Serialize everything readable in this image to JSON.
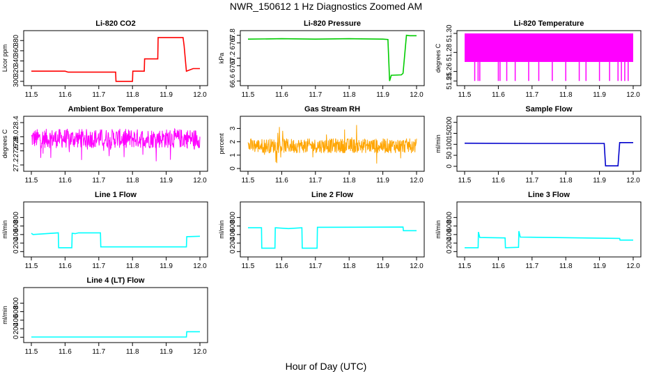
{
  "page": {
    "title": "NWR_150612  1 Hz Diagnostics Zoomed AM",
    "xlabel": "Hour of Day (UTC)"
  },
  "colors": {
    "red": "#ff0000",
    "green": "#00cc00",
    "magenta": "#ff00ff",
    "orange": "#ffa500",
    "blue": "#0000cc",
    "cyan": "#00ffff",
    "frame": "#000000"
  },
  "chart_data": [
    {
      "type": "line",
      "title": "Li-820 CO2",
      "ylabel": "Licor ppm",
      "color": "#ff0000",
      "xlim": [
        11.5,
        12.0
      ],
      "ylim": [
        297,
        394
      ],
      "xticks": [
        "11.5",
        "11.6",
        "11.7",
        "11.8",
        "11.9",
        "12.0"
      ],
      "yticks": [
        "300",
        "320",
        "340",
        "360",
        "380"
      ],
      "x": [
        11.5,
        11.6,
        11.609,
        11.75,
        11.751,
        11.8,
        11.801,
        11.835,
        11.836,
        11.875,
        11.876,
        11.95,
        11.953,
        11.958,
        11.96,
        11.98,
        12.0
      ],
      "y": [
        320,
        320,
        318,
        318,
        300,
        300,
        320,
        320,
        344,
        344,
        386,
        386,
        370,
        333,
        320,
        325,
        325
      ]
    },
    {
      "type": "line",
      "title": "Li-820 Pressure",
      "ylabel": "kPa",
      "color": "#00cc00",
      "xlim": [
        11.5,
        12.0
      ],
      "ylim": [
        66.55,
        67.85
      ],
      "xticks": [
        "11.5",
        "11.6",
        "11.7",
        "11.8",
        "11.9",
        "12.0"
      ],
      "yticks": [
        "66.6",
        "67.0",
        "67.2",
        "67.6",
        "67.8"
      ],
      "x": [
        11.5,
        11.6,
        11.7,
        11.8,
        11.9,
        11.915,
        11.92,
        11.925,
        11.955,
        11.96,
        11.97,
        11.98,
        12.0
      ],
      "y": [
        67.7,
        67.71,
        67.7,
        67.71,
        67.7,
        67.69,
        66.6,
        66.75,
        66.76,
        66.8,
        67.8,
        67.79,
        67.79
      ]
    },
    {
      "type": "line",
      "title": "Li-820 Temperature",
      "ylabel": "degrees C",
      "color": "#ff00ff",
      "xlim": [
        11.5,
        12.0
      ],
      "ylim": [
        51.248,
        51.3
      ],
      "xticks": [
        "11.5",
        "11.6",
        "11.7",
        "11.8",
        "11.9",
        "12.0"
      ],
      "yticks": [
        "51.25",
        "51.26",
        "51.28",
        "51.30"
      ],
      "x": [
        11.5,
        12.0
      ],
      "y": [
        51.27,
        51.3
      ]
    },
    {
      "type": "line",
      "title": "Ambient Box Temperature",
      "ylabel": "degrees C",
      "color": "#ff00ff",
      "xlim": [
        11.5,
        12.0
      ],
      "ylim": [
        27.1,
        28.5
      ],
      "xticks": [
        "11.5",
        "11.6",
        "11.7",
        "11.8",
        "11.9",
        "12.0"
      ],
      "yticks": [
        "27.2",
        "27.6",
        "27.8",
        "28.0",
        "28.4"
      ],
      "x": [
        11.5,
        12.0
      ],
      "y": [
        27.95,
        28.05
      ]
    },
    {
      "type": "line",
      "title": "Gas Stream RH",
      "ylabel": "percent",
      "color": "#ffa500",
      "xlim": [
        11.5,
        12.0
      ],
      "ylim": [
        0,
        3.7
      ],
      "xticks": [
        "11.5",
        "11.6",
        "11.7",
        "11.8",
        "11.9",
        "12.0"
      ],
      "yticks": [
        "0",
        "1",
        "2",
        "3"
      ],
      "x": [
        11.5,
        12.0
      ],
      "y": [
        1.7,
        1.7
      ]
    },
    {
      "type": "line",
      "title": "Sample Flow",
      "ylabel": "ml/min",
      "color": "#0000cc",
      "xlim": [
        11.5,
        12.0
      ],
      "ylim": [
        -10,
        215
      ],
      "xticks": [
        "11.5",
        "11.6",
        "11.7",
        "11.8",
        "11.9",
        "12.0"
      ],
      "yticks": [
        "0",
        "50",
        "100",
        "150",
        "200"
      ],
      "x": [
        11.5,
        11.7,
        11.9,
        11.914,
        11.918,
        11.955,
        11.96,
        11.962,
        12.0
      ],
      "y": [
        105,
        104,
        104,
        104,
        2,
        2,
        108,
        108,
        108
      ]
    },
    {
      "type": "line",
      "title": "Line 1 Flow",
      "ylabel": "ml/min",
      "color": "#00ffff",
      "xlim": [
        11.5,
        12.0
      ],
      "ylim": [
        -60,
        1100
      ],
      "xticks": [
        "11.5",
        "11.6",
        "11.7",
        "11.8",
        "11.9",
        "12.0"
      ],
      "yticks": [
        "0",
        "200",
        "400",
        "600",
        "800"
      ],
      "x": [
        11.5,
        11.505,
        11.58,
        11.581,
        11.62,
        11.621,
        11.63,
        11.64,
        11.705,
        11.706,
        11.96,
        11.961,
        12.0
      ],
      "y": [
        430,
        400,
        440,
        90,
        90,
        430,
        420,
        440,
        440,
        110,
        110,
        350,
        360
      ]
    },
    {
      "type": "line",
      "title": "Line 2 Flow",
      "ylabel": "ml/min",
      "color": "#00ffff",
      "xlim": [
        11.5,
        12.0
      ],
      "ylim": [
        -60,
        1100
      ],
      "xticks": [
        "11.5",
        "11.6",
        "11.7",
        "11.8",
        "11.9",
        "12.0"
      ],
      "yticks": [
        "0",
        "200",
        "400",
        "600",
        "800"
      ],
      "x": [
        11.5,
        11.54,
        11.541,
        11.58,
        11.581,
        11.62,
        11.66,
        11.661,
        11.705,
        11.706,
        11.96,
        11.961,
        12.0
      ],
      "y": [
        560,
        560,
        80,
        80,
        560,
        540,
        560,
        80,
        80,
        570,
        575,
        490,
        490
      ]
    },
    {
      "type": "line",
      "title": "Line 3 Flow",
      "ylabel": "ml/min",
      "color": "#00ffff",
      "xlim": [
        11.5,
        12.0
      ],
      "ylim": [
        -60,
        1100
      ],
      "xticks": [
        "11.5",
        "11.6",
        "11.7",
        "11.8",
        "11.9",
        "12.0"
      ],
      "yticks": [
        "0",
        "200",
        "400",
        "600",
        "800"
      ],
      "x": [
        11.5,
        11.54,
        11.541,
        11.545,
        11.62,
        11.621,
        11.66,
        11.661,
        11.665,
        11.96,
        11.961,
        12.0
      ],
      "y": [
        90,
        90,
        460,
        330,
        320,
        90,
        100,
        480,
        340,
        310,
        270,
        270
      ]
    },
    {
      "type": "line",
      "title": "Line 4 (LT) Flow",
      "ylabel": "ml/min",
      "color": "#00ffff",
      "xlim": [
        11.5,
        12.0
      ],
      "ylim": [
        -60,
        1100
      ],
      "xticks": [
        "11.5",
        "11.6",
        "11.7",
        "11.8",
        "11.9",
        "12.0"
      ],
      "yticks": [
        "0",
        "200",
        "400",
        "600",
        "800"
      ],
      "x": [
        11.5,
        11.96,
        11.961,
        12.0
      ],
      "y": [
        5,
        5,
        130,
        130
      ]
    }
  ]
}
